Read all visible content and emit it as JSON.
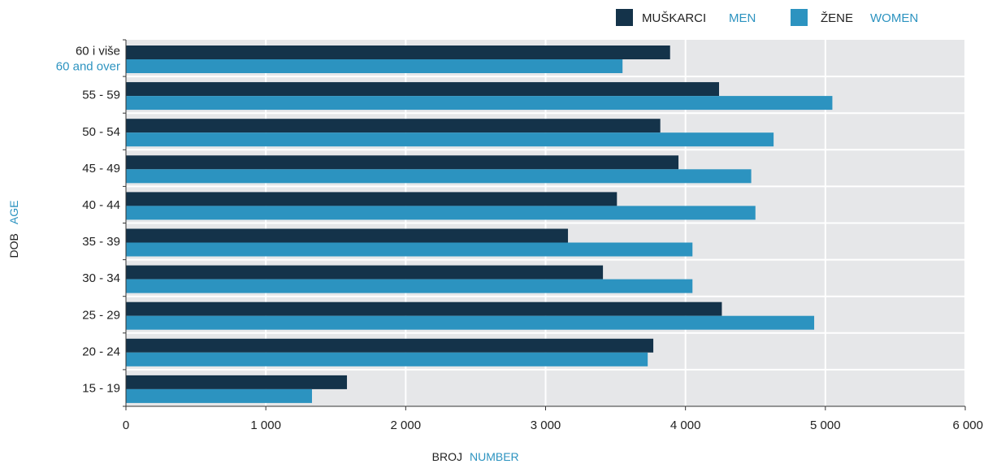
{
  "chart_data": {
    "type": "bar",
    "orientation": "horizontal",
    "categories": [
      "15 - 19",
      "20 - 24",
      "25 - 29",
      "30 - 34",
      "35 - 39",
      "40 - 44",
      "45 - 49",
      "50 - 54",
      "55 - 59",
      "60 i više"
    ],
    "category_secondary": {
      "60 i više": "60 and over"
    },
    "series": [
      {
        "name": "MUŠKARCI",
        "name_en": "MEN",
        "color": "#14334a",
        "values": [
          1580,
          3770,
          4260,
          3410,
          3160,
          3510,
          3950,
          3820,
          4240,
          3890
        ]
      },
      {
        "name": "ŽENE",
        "name_en": "WOMEN",
        "color": "#2c93c0",
        "values": [
          1330,
          3730,
          4920,
          4050,
          4050,
          4500,
          4470,
          4630,
          5050,
          3550
        ]
      }
    ],
    "xlim": [
      0,
      6000
    ],
    "x_ticks": [
      0,
      1000,
      2000,
      3000,
      4000,
      5000,
      6000
    ],
    "x_tick_labels": [
      "0",
      "1 000",
      "2 000",
      "3 000",
      "4 000",
      "5 000",
      "6 000"
    ],
    "xlabel": "BROJ",
    "xlabel_en": "NUMBER",
    "ylabel": "DOB",
    "ylabel_en": "AGE",
    "legend_position": "top-right",
    "grid": true
  },
  "colors": {
    "plot_background": "#e6e7e9",
    "grid": "#ffffff",
    "axis": "#333333",
    "label_dark": "#222222",
    "label_accent": "#2c93c0"
  }
}
